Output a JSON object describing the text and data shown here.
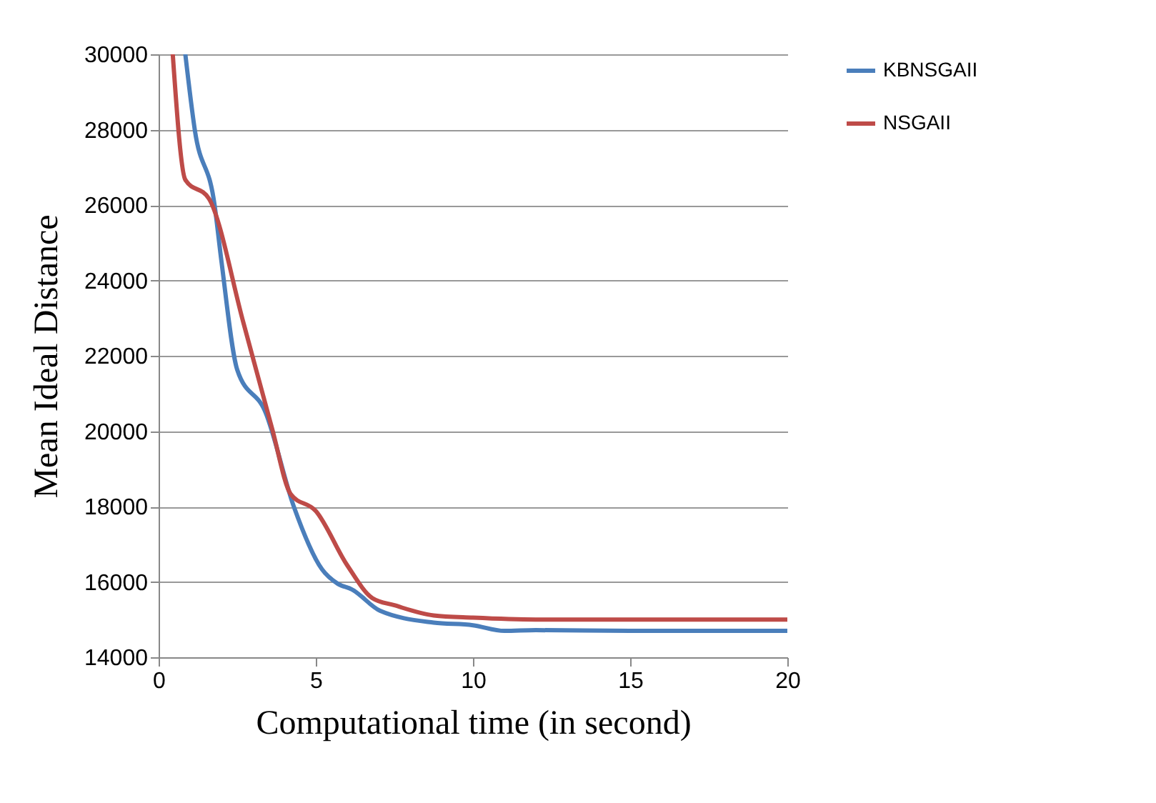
{
  "chart_data": {
    "type": "line",
    "xlabel": "Computational  time (in second)",
    "ylabel": "Mean Ideal Distance",
    "xlim": [
      0,
      20
    ],
    "ylim": [
      14000,
      30000
    ],
    "xticks": [
      0,
      5,
      10,
      15,
      20
    ],
    "yticks": [
      14000,
      16000,
      18000,
      20000,
      22000,
      24000,
      26000,
      28000,
      30000
    ],
    "grid": "y",
    "legend": "right",
    "marker": "none",
    "line_style": "solid",
    "series": [
      {
        "name": "KBNSGAII",
        "color": "#4a7ebb",
        "x": [
          0.85,
          1.15,
          1.78,
          2.0,
          2.5,
          3.4,
          4.3,
          5.2,
          5.7,
          6.15,
          7.05,
          8.75,
          10,
          11,
          12,
          15,
          20
        ],
        "values": [
          30000,
          28000,
          26000,
          24500,
          21630,
          20500,
          18000,
          16330,
          15950,
          15800,
          15230,
          14920,
          14850,
          14700,
          14720,
          14700,
          14700
        ]
      },
      {
        "name": "NSGAII",
        "color": "#be4b48",
        "x": [
          0.45,
          0.85,
          1.6,
          2.7,
          3.6,
          4.2,
          5.0,
          6.0,
          6.8,
          7.5,
          8.75,
          10,
          12,
          15,
          20
        ],
        "values": [
          30000,
          26670,
          26170,
          22870,
          20100,
          18330,
          17880,
          16440,
          15570,
          15380,
          15110,
          15050,
          15000,
          15000,
          15000
        ]
      }
    ]
  }
}
